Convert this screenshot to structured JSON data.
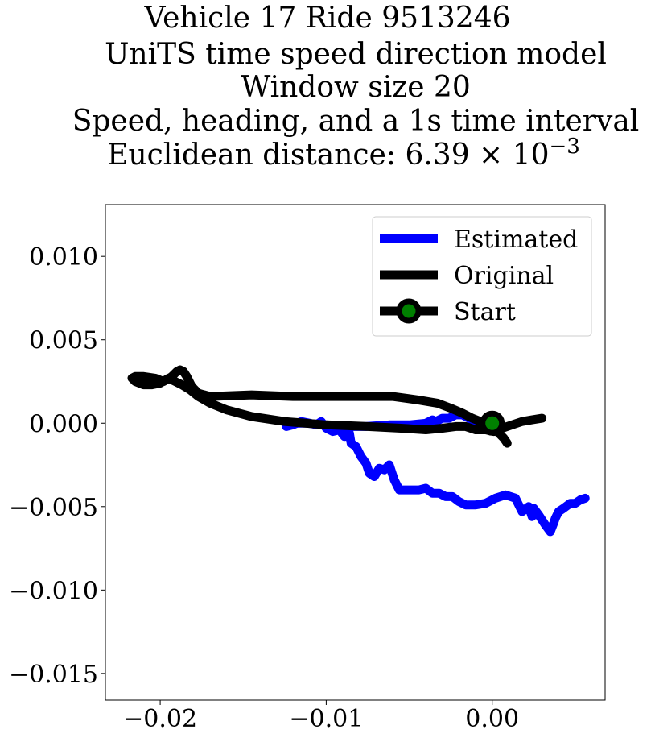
{
  "chart_data": {
    "type": "line",
    "title_lines": [
      "Vehicle 17 Ride 9513246",
      "UniTS time speed direction model",
      "Window size 20",
      "Speed, heading, and a 1s time interval",
      "Euclidean distance: 6.39 × 10"
    ],
    "title_exponent": "−3",
    "xlim": [
      -0.0233,
      0.0068
    ],
    "ylim": [
      -0.0166,
      0.0131
    ],
    "x_ticks": [
      {
        "value": -0.02,
        "label": "−0.02"
      },
      {
        "value": -0.01,
        "label": "−0.01"
      },
      {
        "value": 0.0,
        "label": "0.00"
      }
    ],
    "y_ticks": [
      {
        "value": 0.01,
        "label": "0.010"
      },
      {
        "value": 0.005,
        "label": "0.005"
      },
      {
        "value": 0.0,
        "label": "0.000"
      },
      {
        "value": -0.005,
        "label": "−0.005"
      },
      {
        "value": -0.01,
        "label": "−0.010"
      },
      {
        "value": -0.015,
        "label": "−0.015"
      }
    ],
    "grid": false,
    "legend_position": "top-right",
    "series": [
      {
        "name": "Estimated",
        "color": "#0000ff",
        "x": [
          -0.0124,
          -0.012,
          -0.0115,
          -0.011,
          -0.0106,
          -0.0103,
          -0.01,
          -0.0096,
          -0.0092,
          -0.0089,
          -0.0086,
          -0.0085,
          -0.0082,
          -0.0079,
          -0.0076,
          -0.0074,
          -0.0071,
          -0.0068,
          -0.0065,
          -0.0062,
          -0.0059,
          -0.0056,
          -0.0052,
          -0.0048,
          -0.0044,
          -0.004,
          -0.0036,
          -0.0032,
          -0.0028,
          -0.0024,
          -0.002,
          -0.0016,
          -0.001,
          -0.0004,
          0.0002,
          0.0008,
          0.0014,
          0.0018,
          0.0022,
          0.0024,
          0.0025,
          0.0028,
          0.0032,
          0.0035,
          0.0037,
          0.0038,
          0.004,
          0.0043,
          0.0047,
          0.005,
          0.0053,
          0.0056
        ],
        "y": [
          -0.0002,
          -0.0001,
          0.0001,
          0.0,
          -0.0001,
          0.0001,
          -0.0003,
          -0.0005,
          -0.0004,
          -0.0008,
          -0.0006,
          -0.0012,
          -0.0014,
          -0.002,
          -0.0024,
          -0.003,
          -0.0032,
          -0.0027,
          -0.0028,
          -0.0025,
          -0.0034,
          -0.004,
          -0.004,
          -0.004,
          -0.004,
          -0.0039,
          -0.0042,
          -0.0042,
          -0.0044,
          -0.0044,
          -0.0047,
          -0.0049,
          -0.0049,
          -0.0048,
          -0.0045,
          -0.0043,
          -0.0045,
          -0.0053,
          -0.005,
          -0.0056,
          -0.0051,
          -0.0055,
          -0.0061,
          -0.0065,
          -0.006,
          -0.0057,
          -0.0053,
          -0.0051,
          -0.0048,
          -0.0048,
          -0.0046,
          -0.0045
        ]
      },
      {
        "name": "Estimated",
        "color": "#0000ff",
        "x": [
          -0.0124,
          -0.0112,
          -0.01,
          -0.0088,
          -0.0076,
          -0.0062,
          -0.005,
          -0.004,
          -0.0036,
          -0.0034,
          -0.003,
          -0.0026,
          -0.0022,
          -0.0018,
          -0.0014,
          -0.001,
          -0.0006
        ],
        "y": [
          0.0,
          0.0,
          -0.0001,
          -0.0002,
          -0.0002,
          -0.0001,
          -0.0001,
          0.0,
          0.0002,
          0.0001,
          0.0003,
          0.0003,
          0.0005,
          0.0005,
          0.0003,
          0.0001,
          0.0
        ]
      },
      {
        "name": "Original",
        "color": "#000000",
        "x": [
          0.003,
          0.0024,
          0.0018,
          0.0012,
          0.0006,
          0.0001,
          -0.0004,
          -0.001,
          -0.0016,
          -0.0022,
          -0.003,
          -0.004,
          -0.0055,
          -0.0075,
          -0.01,
          -0.0125,
          -0.0145,
          -0.016,
          -0.017,
          -0.0177,
          -0.0182,
          -0.0187,
          -0.0191,
          -0.0195,
          -0.02,
          -0.0205,
          -0.021,
          -0.0215,
          -0.0217,
          -0.0215,
          -0.021,
          -0.0203,
          -0.0198,
          -0.0193,
          -0.019,
          -0.0188,
          -0.0186,
          -0.0184,
          -0.0181,
          -0.0177,
          -0.017,
          -0.0145,
          -0.012,
          -0.01,
          -0.008,
          -0.006,
          -0.0045,
          -0.0033,
          -0.0025,
          -0.0018,
          -0.0012,
          -0.0007,
          -0.0002,
          0.0003,
          0.0007,
          0.0009
        ],
        "y": [
          0.0003,
          0.0002,
          0.0001,
          -0.0001,
          -0.0003,
          -0.0005,
          -0.0004,
          -0.0004,
          -0.0002,
          -0.0002,
          -0.0003,
          -0.0004,
          -0.0003,
          -0.0002,
          -0.0001,
          0.0001,
          0.0004,
          0.0008,
          0.0012,
          0.0016,
          0.002,
          0.0023,
          0.0025,
          0.0027,
          0.0024,
          0.0023,
          0.0023,
          0.0025,
          0.0027,
          0.0028,
          0.0028,
          0.0027,
          0.0025,
          0.0028,
          0.0031,
          0.0032,
          0.0031,
          0.0028,
          0.0022,
          0.0018,
          0.0016,
          0.0017,
          0.0016,
          0.0016,
          0.0016,
          0.0016,
          0.0014,
          0.0012,
          0.0009,
          0.0006,
          0.0003,
          0.0001,
          -0.0002,
          -0.0005,
          -0.0009,
          -0.0012
        ]
      }
    ],
    "start_point": {
      "name": "Start",
      "x": 0.0,
      "y": 0.0,
      "marker_color": "#008000",
      "edge_color": "#000000"
    },
    "legend": [
      {
        "label": "Estimated",
        "color": "#0000ff",
        "marker": false
      },
      {
        "label": "Original",
        "color": "#000000",
        "marker": false
      },
      {
        "label": "Start",
        "color": "#000000",
        "marker": true,
        "marker_color": "#008000"
      }
    ]
  }
}
